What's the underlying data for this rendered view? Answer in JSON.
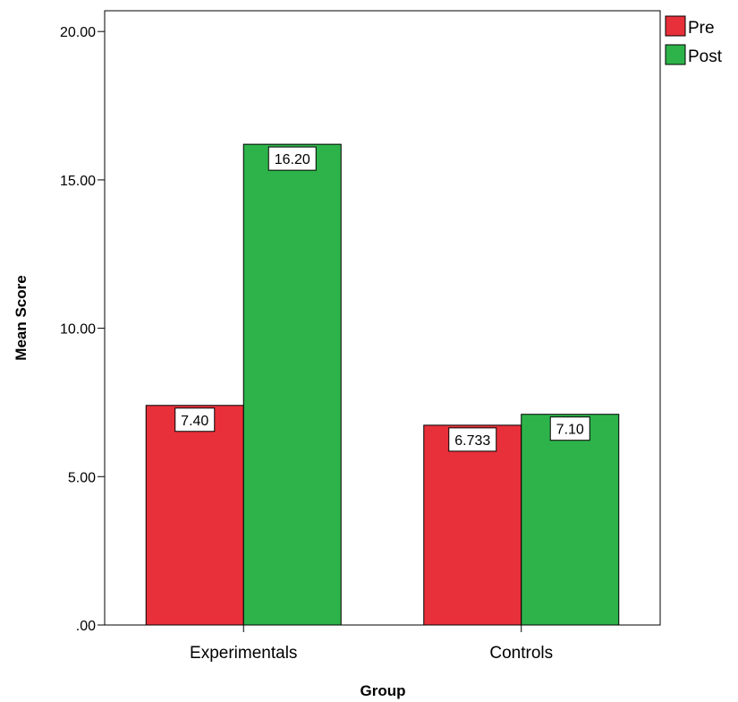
{
  "chart_data": {
    "type": "bar",
    "title": "",
    "xlabel": "Group",
    "ylabel": "Mean Score",
    "categories": [
      "Experimentals",
      "Controls"
    ],
    "series": [
      {
        "name": "Pre",
        "color": "#e8303a",
        "values": [
          7.4,
          6.733
        ],
        "labels": [
          "7.40",
          "6.733"
        ]
      },
      {
        "name": "Post",
        "color": "#2db34a",
        "values": [
          16.2,
          7.1
        ],
        "labels": [
          "16.20",
          "7.10"
        ]
      }
    ],
    "ylim": [
      0,
      20.7
    ],
    "yticks": [
      {
        "value": 0,
        "label": ".00"
      },
      {
        "value": 5,
        "label": "5.00"
      },
      {
        "value": 10,
        "label": "10.00"
      },
      {
        "value": 15,
        "label": "15.00"
      },
      {
        "value": 20,
        "label": "20.00"
      }
    ],
    "grid": false,
    "legend_position": "top-right"
  }
}
